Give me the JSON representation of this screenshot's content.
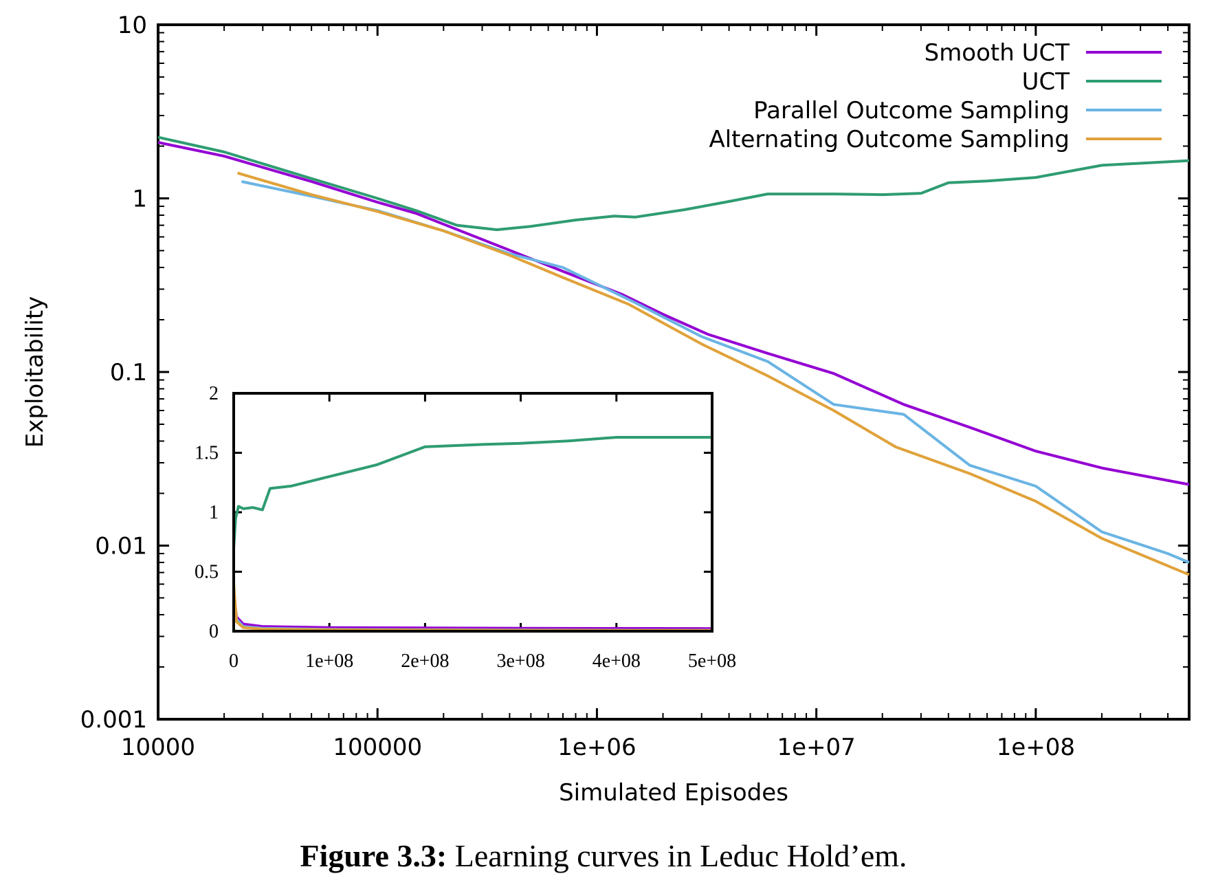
{
  "chart_data": [
    {
      "type": "line",
      "xlabel": "Simulated Episodes",
      "ylabel": "Exploitability",
      "xscale": "log",
      "yscale": "log",
      "xlim": [
        10000,
        500000000
      ],
      "ylim": [
        0.001,
        10
      ],
      "xticks": [
        10000,
        100000,
        1000000,
        10000000,
        100000000
      ],
      "xtick_labels": [
        "10000",
        "100000",
        "1e+06",
        "1e+07",
        "1e+08"
      ],
      "yticks": [
        0.001,
        0.01,
        0.1,
        1,
        10
      ],
      "ytick_labels": [
        "0.001",
        "0.01",
        "0.1",
        "1",
        "10"
      ],
      "legend_position": "top-right",
      "grid": false,
      "series": [
        {
          "name": "Smooth UCT",
          "color": "#9400d3",
          "points": [
            [
              10000,
              2.1
            ],
            [
              20000,
              1.75
            ],
            [
              50000,
              1.25
            ],
            [
              100000,
              0.95
            ],
            [
              150000,
              0.82
            ],
            [
              300000,
              0.58
            ],
            [
              700000,
              0.38
            ],
            [
              1300000,
              0.28
            ],
            [
              2000000,
              0.215
            ],
            [
              3200000,
              0.165
            ],
            [
              6000000,
              0.128
            ],
            [
              12000000,
              0.098
            ],
            [
              25000000,
              0.065
            ],
            [
              50000000,
              0.048
            ],
            [
              100000000,
              0.035
            ],
            [
              200000000,
              0.028
            ],
            [
              500000000,
              0.0225
            ]
          ]
        },
        {
          "name": "UCT",
          "color": "#2e9c72",
          "points": [
            [
              10000,
              2.25
            ],
            [
              20000,
              1.85
            ],
            [
              50000,
              1.3
            ],
            [
              100000,
              1.0
            ],
            [
              150000,
              0.85
            ],
            [
              230000,
              0.7
            ],
            [
              350000,
              0.66
            ],
            [
              500000,
              0.69
            ],
            [
              800000,
              0.75
            ],
            [
              1200000,
              0.79
            ],
            [
              1500000,
              0.78
            ],
            [
              2500000,
              0.86
            ],
            [
              4000000,
              0.96
            ],
            [
              6000000,
              1.06
            ],
            [
              12000000,
              1.06
            ],
            [
              20000000,
              1.05
            ],
            [
              30000000,
              1.07
            ],
            [
              40000000,
              1.23
            ],
            [
              60000000,
              1.26
            ],
            [
              100000000,
              1.32
            ],
            [
              200000000,
              1.55
            ],
            [
              500000000,
              1.65
            ]
          ]
        },
        {
          "name": "Parallel Outcome Sampling",
          "color": "#6ab4e4",
          "points": [
            [
              24000,
              1.25
            ],
            [
              50000,
              1.03
            ],
            [
              100000,
              0.85
            ],
            [
              200000,
              0.65
            ],
            [
              400000,
              0.48
            ],
            [
              700000,
              0.4
            ],
            [
              1500000,
              0.25
            ],
            [
              3000000,
              0.16
            ],
            [
              6000000,
              0.115
            ],
            [
              12000000,
              0.065
            ],
            [
              25000000,
              0.057
            ],
            [
              50000000,
              0.029
            ],
            [
              100000000,
              0.022
            ],
            [
              200000000,
              0.012
            ],
            [
              400000000,
              0.009
            ],
            [
              500000000,
              0.008
            ]
          ]
        },
        {
          "name": "Alternating Outcome Sampling",
          "color": "#e0a23a",
          "points": [
            [
              23000,
              1.4
            ],
            [
              50000,
              1.05
            ],
            [
              100000,
              0.84
            ],
            [
              200000,
              0.65
            ],
            [
              400000,
              0.47
            ],
            [
              700000,
              0.35
            ],
            [
              1400000,
              0.245
            ],
            [
              3000000,
              0.145
            ],
            [
              6000000,
              0.095
            ],
            [
              12000000,
              0.06
            ],
            [
              23000000,
              0.037
            ],
            [
              50000000,
              0.026
            ],
            [
              100000000,
              0.018
            ],
            [
              200000000,
              0.011
            ],
            [
              500000000,
              0.0068
            ]
          ]
        }
      ]
    },
    {
      "type": "line",
      "inset": true,
      "xscale": "linear",
      "yscale": "linear",
      "xlim": [
        0,
        500000000
      ],
      "ylim": [
        0,
        2
      ],
      "xticks": [
        0,
        100000000,
        200000000,
        300000000,
        400000000,
        500000000
      ],
      "xtick_labels": [
        "0",
        "1e+08",
        "2e+08",
        "3e+08",
        "4e+08",
        "5e+08"
      ],
      "yticks": [
        0,
        0.5,
        1,
        1.5,
        2
      ],
      "ytick_labels": [
        "0",
        "0.5",
        "1",
        "1.5",
        "2"
      ],
      "series": [
        {
          "name": "UCT",
          "color": "#2e9c72",
          "points": [
            [
              0,
              0.7
            ],
            [
              2000000,
              0.95
            ],
            [
              5000000,
              1.05
            ],
            [
              10000000,
              1.03
            ],
            [
              20000000,
              1.04
            ],
            [
              30000000,
              1.02
            ],
            [
              38000000,
              1.2
            ],
            [
              60000000,
              1.22
            ],
            [
              100000000,
              1.3
            ],
            [
              150000000,
              1.4
            ],
            [
              200000000,
              1.55
            ],
            [
              260000000,
              1.57
            ],
            [
              300000000,
              1.58
            ],
            [
              350000000,
              1.6
            ],
            [
              400000000,
              1.63
            ],
            [
              500000000,
              1.63
            ]
          ]
        },
        {
          "name": "Smooth UCT",
          "color": "#9400d3",
          "points": [
            [
              0,
              0.3
            ],
            [
              3000000,
              0.12
            ],
            [
              10000000,
              0.06
            ],
            [
              30000000,
              0.04
            ],
            [
              100000000,
              0.03
            ],
            [
              300000000,
              0.025
            ],
            [
              500000000,
              0.022
            ]
          ]
        },
        {
          "name": "Parallel Outcome Sampling",
          "color": "#6ab4e4",
          "points": [
            [
              0,
              0.35
            ],
            [
              3000000,
              0.1
            ],
            [
              10000000,
              0.04
            ],
            [
              30000000,
              0.025
            ],
            [
              100000000,
              0.015
            ],
            [
              300000000,
              0.01
            ],
            [
              500000000,
              0.008
            ]
          ]
        },
        {
          "name": "Alternating Outcome Sampling",
          "color": "#e0a23a",
          "points": [
            [
              0,
              0.4
            ],
            [
              3000000,
              0.08
            ],
            [
              10000000,
              0.03
            ],
            [
              30000000,
              0.018
            ],
            [
              100000000,
              0.012
            ],
            [
              300000000,
              0.008
            ],
            [
              500000000,
              0.007
            ]
          ]
        }
      ]
    }
  ],
  "caption": {
    "label": "Figure 3.3:",
    "text": "Learning curves in Leduc Hold’em."
  }
}
